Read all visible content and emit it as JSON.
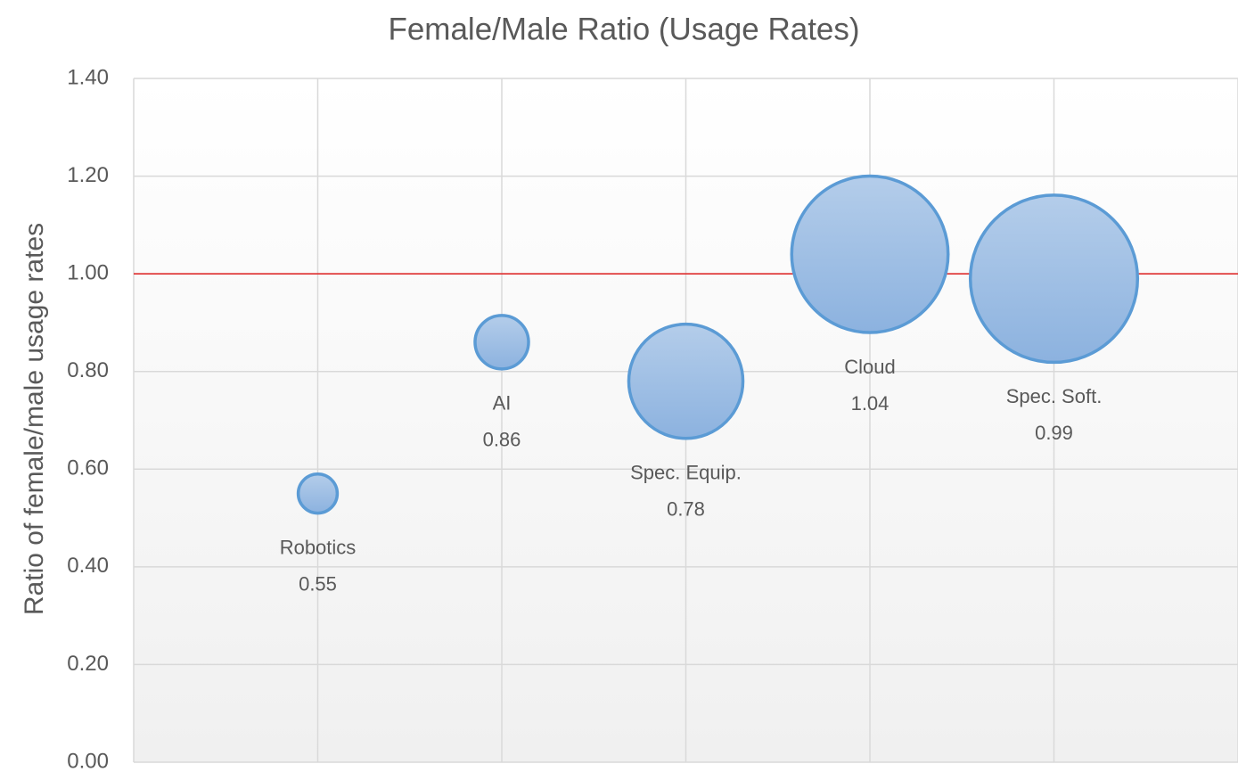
{
  "chart_data": {
    "type": "bubble",
    "title": "Female/Male Ratio (Usage Rates)",
    "y_label": "Ratio of female/male usage rates",
    "categories": [
      "Robotics",
      "AI",
      "Spec. Equip.",
      "Cloud",
      "Spec. Soft."
    ],
    "values": [
      0.55,
      0.86,
      0.78,
      1.04,
      0.99
    ],
    "sizes": [
      4.8,
      9,
      41,
      77,
      88
    ],
    "color": "#5b9bd5",
    "reference_line": 1.0,
    "reference_color": "#e02020",
    "ylim": [
      0,
      1.4
    ],
    "yticks": [
      {
        "value": 0,
        "label": "0.00"
      },
      {
        "value": 0.2,
        "label": "0.20"
      },
      {
        "value": 0.4,
        "label": "0.40"
      },
      {
        "value": 0.6,
        "label": "0.60"
      },
      {
        "value": 0.8,
        "label": "0.80"
      },
      {
        "value": 1.0,
        "label": "1.00"
      },
      {
        "value": 1.2,
        "label": "1.20"
      },
      {
        "value": 1.4,
        "label": "1.40"
      }
    ],
    "grid": true
  }
}
